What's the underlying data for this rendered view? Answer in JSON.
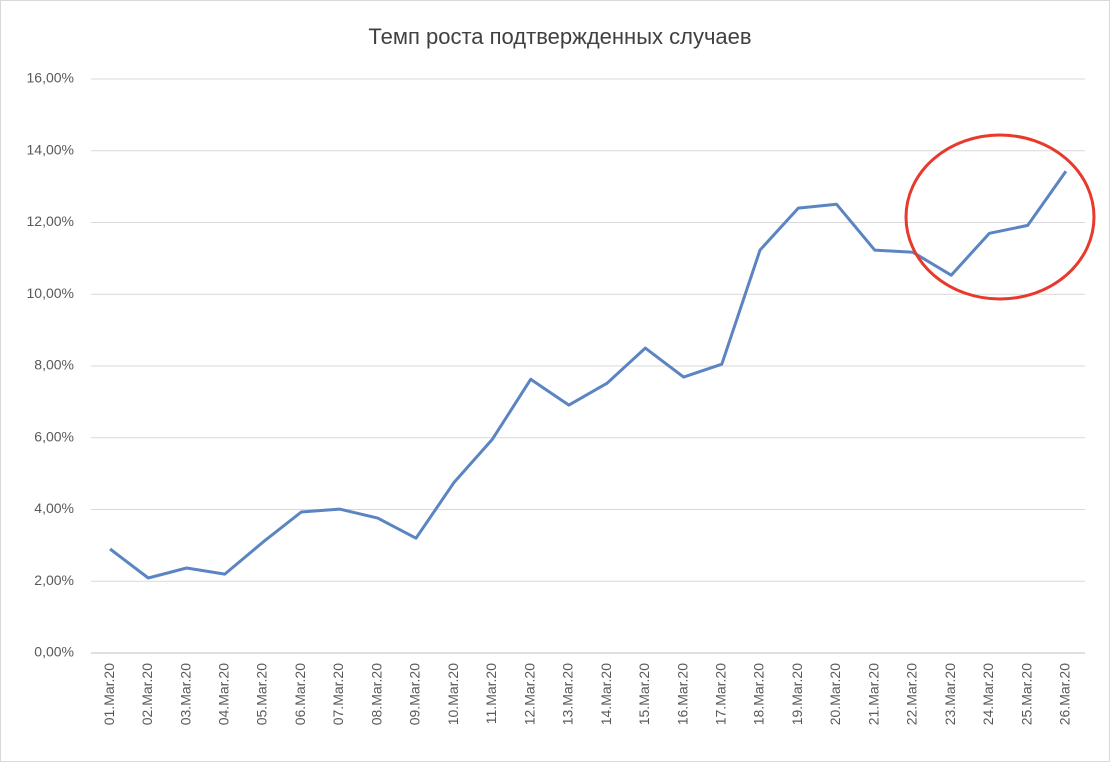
{
  "chart_data": {
    "type": "line",
    "title": "Темп роста подтвержденных случаев",
    "categories": [
      "01.Mar.20",
      "02.Mar.20",
      "03.Mar.20",
      "04.Mar.20",
      "05.Mar.20",
      "06.Mar.20",
      "07.Mar.20",
      "08.Mar.20",
      "09.Mar.20",
      "10.Mar.20",
      "11.Mar.20",
      "12.Mar.20",
      "13.Mar.20",
      "14.Mar.20",
      "15.Mar.20",
      "16.Mar.20",
      "17.Mar.20",
      "18.Mar.20",
      "19.Mar.20",
      "20.Mar.20",
      "21.Mar.20",
      "22.Mar.20",
      "23.Mar.20",
      "24.Mar.20",
      "25.Mar.20",
      "26.Mar.20"
    ],
    "values": [
      2.9,
      2.09,
      2.37,
      2.2,
      3.09,
      3.93,
      4.01,
      3.76,
      3.2,
      4.76,
      5.96,
      7.63,
      6.91,
      7.52,
      8.5,
      7.69,
      8.05,
      11.23,
      12.4,
      12.51,
      11.23,
      11.17,
      10.53,
      11.7,
      11.92,
      13.43
    ],
    "color": "#5a84c2",
    "ylim": [
      0,
      16
    ],
    "yticks": [
      {
        "value": 0,
        "label": "0,00%"
      },
      {
        "value": 2,
        "label": "2,00%"
      },
      {
        "value": 4,
        "label": "4,00%"
      },
      {
        "value": 6,
        "label": "6,00%"
      },
      {
        "value": 8,
        "label": "8,00%"
      },
      {
        "value": 10,
        "label": "10,00%"
      },
      {
        "value": 12,
        "label": "12,00%"
      },
      {
        "value": 14,
        "label": "14,00%"
      },
      {
        "value": 16,
        "label": "16,00%"
      }
    ],
    "grid": true
  }
}
